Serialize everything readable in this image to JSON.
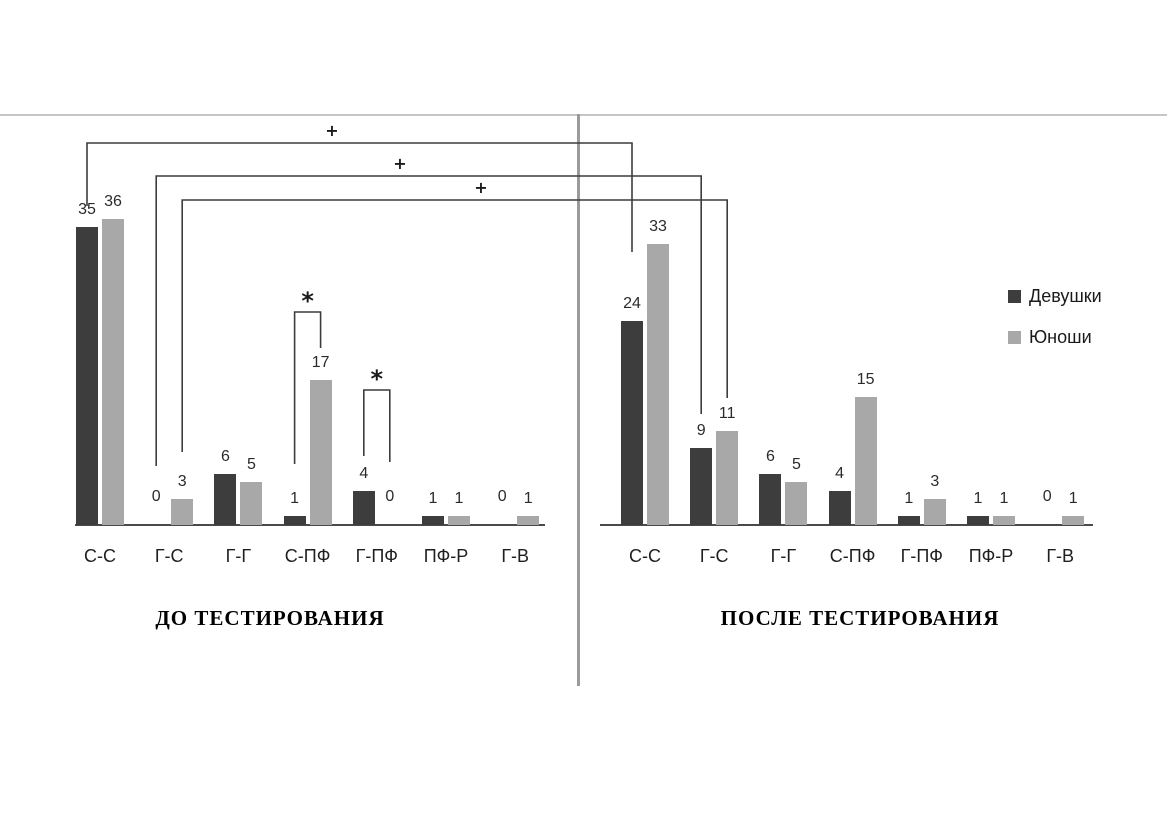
{
  "chart_data": {
    "type": "bar",
    "categories": [
      "С-С",
      "Г-С",
      "Г-Г",
      "С-ПФ",
      "Г-ПФ",
      "ПФ-Р",
      "Г-В"
    ],
    "legend": [
      "Девушки",
      "Юноши"
    ],
    "colors": {
      "Девушки": "#3d3d3d",
      "Юноши": "#a8a8a8"
    },
    "ylim": [
      0,
      38
    ],
    "grid": false,
    "legend_position": "right",
    "panels": [
      {
        "title": "ДО ТЕСТИРОВАНИЯ",
        "series": [
          {
            "name": "Девушки",
            "values": [
              35,
              0,
              6,
              1,
              4,
              1,
              0
            ]
          },
          {
            "name": "Юноши",
            "values": [
              36,
              3,
              5,
              17,
              0,
              1,
              1
            ]
          }
        ]
      },
      {
        "title": "ПОСЛЕ ТЕСТИРОВАНИЯ",
        "series": [
          {
            "name": "Девушки",
            "values": [
              24,
              9,
              6,
              4,
              1,
              1,
              0
            ]
          },
          {
            "name": "Юноши",
            "values": [
              33,
              11,
              5,
              15,
              3,
              1,
              1
            ]
          }
        ]
      }
    ],
    "annotations": {
      "cross_panel": [
        {
          "label": "+",
          "category": "С-С",
          "series": "Девушки",
          "from_panel": "ДО ТЕСТИРОВАНИЯ",
          "to_panel": "ПОСЛЕ ТЕСТИРОВАНИЯ"
        },
        {
          "label": "+",
          "category": "Г-С",
          "series": "Девушки",
          "from_panel": "ДО ТЕСТИРОВАНИЯ",
          "to_panel": "ПОСЛЕ ТЕСТИРОВАНИЯ"
        },
        {
          "label": "+",
          "category": "Г-С",
          "series": "Юноши",
          "from_panel": "ДО ТЕСТИРОВАНИЯ",
          "to_panel": "ПОСЛЕ ТЕСТИРОВАНИЯ"
        }
      ],
      "within_panel": [
        {
          "label": "*",
          "panel": "ДО ТЕСТИРОВАНИЯ",
          "category": "С-ПФ"
        },
        {
          "label": "*",
          "panel": "ДО ТЕСТИРОВАНИЯ",
          "category": "Г-ПФ"
        }
      ]
    }
  }
}
